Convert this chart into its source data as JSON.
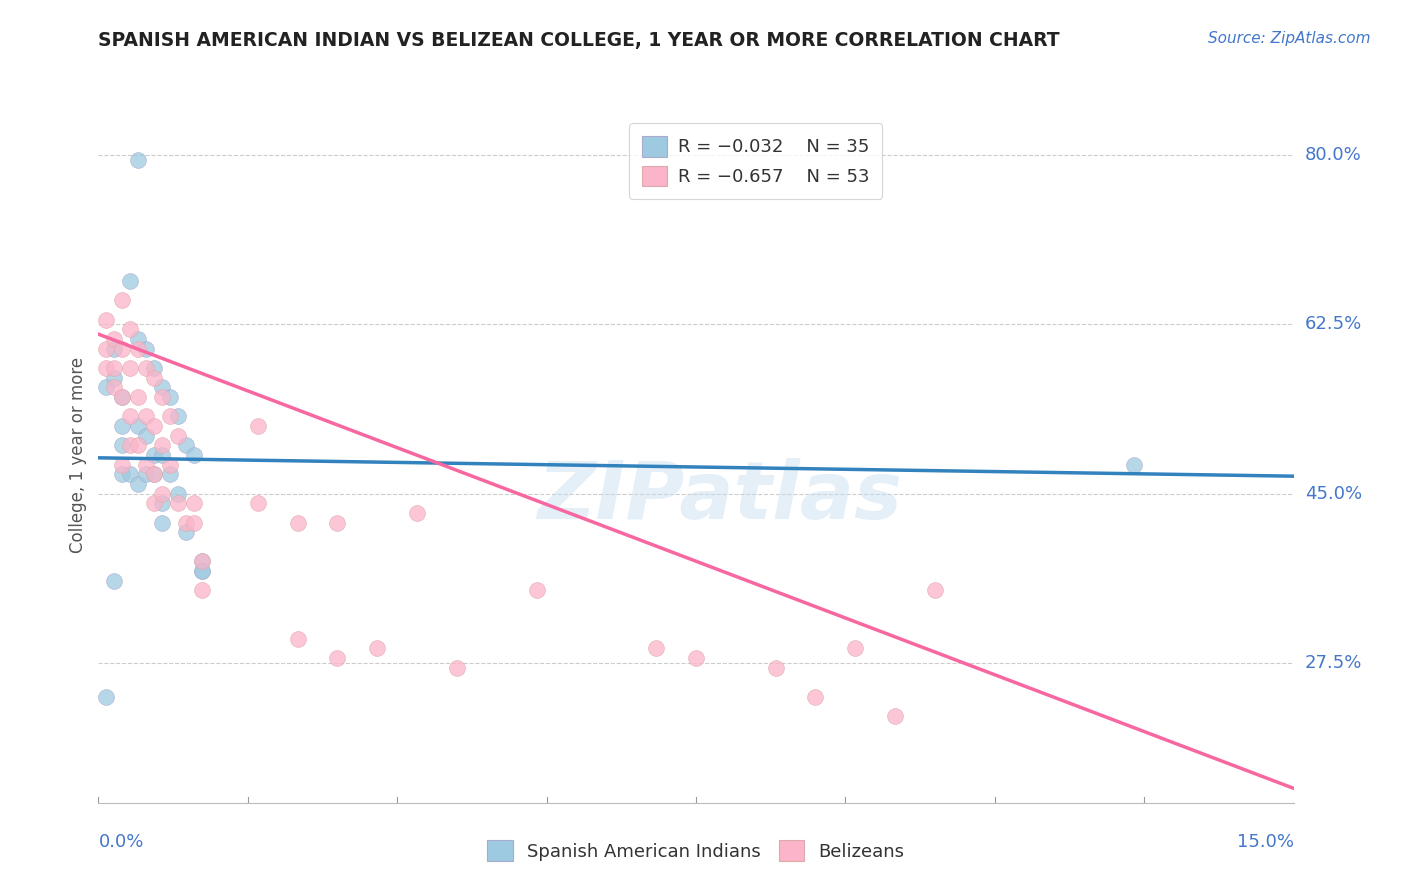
{
  "title": "SPANISH AMERICAN INDIAN VS BELIZEAN COLLEGE, 1 YEAR OR MORE CORRELATION CHART",
  "source": "Source: ZipAtlas.com",
  "ylabel": "College, 1 year or more",
  "xlim": [
    0.0,
    0.15
  ],
  "ylim": [
    0.13,
    0.85
  ],
  "ytick_positions": [
    0.275,
    0.45,
    0.625,
    0.8
  ],
  "ytick_labels": [
    "27.5%",
    "45.0%",
    "62.5%",
    "80.0%"
  ],
  "legend_r1": "R = −0.032",
  "legend_n1": "N = 35",
  "legend_r2": "R = −0.657",
  "legend_n2": "N = 53",
  "color_blue": "#9ecae1",
  "color_pink": "#fbb4c9",
  "color_blue_line": "#3182bd",
  "color_pink_line": "#f768a1",
  "color_axis_label": "#4477cc",
  "watermark": "ZIPatlas",
  "blue_scatter_x": [
    0.001,
    0.002,
    0.002,
    0.002,
    0.003,
    0.003,
    0.003,
    0.003,
    0.004,
    0.004,
    0.005,
    0.005,
    0.005,
    0.006,
    0.006,
    0.006,
    0.007,
    0.007,
    0.007,
    0.008,
    0.008,
    0.008,
    0.008,
    0.009,
    0.009,
    0.01,
    0.01,
    0.011,
    0.011,
    0.012,
    0.013,
    0.013,
    0.013,
    0.001,
    0.13
  ],
  "blue_scatter_y": [
    0.56,
    0.57,
    0.6,
    0.36,
    0.55,
    0.52,
    0.5,
    0.47,
    0.67,
    0.47,
    0.61,
    0.52,
    0.46,
    0.6,
    0.51,
    0.47,
    0.58,
    0.49,
    0.47,
    0.56,
    0.49,
    0.44,
    0.42,
    0.55,
    0.47,
    0.53,
    0.45,
    0.5,
    0.41,
    0.49,
    0.38,
    0.37,
    0.37,
    0.24,
    0.48
  ],
  "pink_scatter_x": [
    0.001,
    0.001,
    0.001,
    0.002,
    0.002,
    0.002,
    0.003,
    0.003,
    0.003,
    0.004,
    0.004,
    0.004,
    0.004,
    0.005,
    0.005,
    0.005,
    0.006,
    0.006,
    0.006,
    0.007,
    0.007,
    0.007,
    0.007,
    0.008,
    0.008,
    0.008,
    0.009,
    0.009,
    0.01,
    0.01,
    0.011,
    0.012,
    0.012,
    0.013,
    0.013,
    0.02,
    0.02,
    0.025,
    0.025,
    0.03,
    0.03,
    0.035,
    0.04,
    0.045,
    0.055,
    0.07,
    0.075,
    0.085,
    0.09,
    0.095,
    0.1,
    0.105,
    0.003
  ],
  "pink_scatter_y": [
    0.63,
    0.6,
    0.58,
    0.61,
    0.58,
    0.56,
    0.65,
    0.6,
    0.55,
    0.62,
    0.58,
    0.53,
    0.5,
    0.6,
    0.55,
    0.5,
    0.58,
    0.53,
    0.48,
    0.57,
    0.52,
    0.47,
    0.44,
    0.55,
    0.5,
    0.45,
    0.53,
    0.48,
    0.51,
    0.44,
    0.42,
    0.44,
    0.42,
    0.38,
    0.35,
    0.52,
    0.44,
    0.42,
    0.3,
    0.42,
    0.28,
    0.29,
    0.43,
    0.27,
    0.35,
    0.29,
    0.28,
    0.27,
    0.24,
    0.29,
    0.22,
    0.35,
    0.48
  ],
  "blue_line_x": [
    0.0,
    0.15
  ],
  "blue_line_y": [
    0.487,
    0.468
  ],
  "pink_line_x": [
    0.0,
    0.15
  ],
  "pink_line_y": [
    0.615,
    0.145
  ]
}
